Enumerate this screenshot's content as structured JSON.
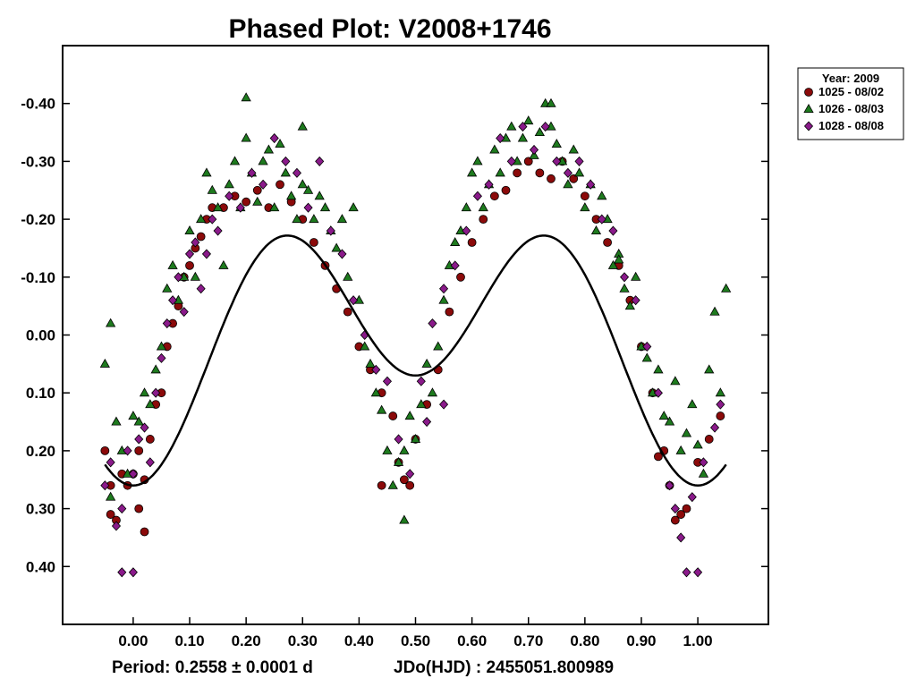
{
  "chart_data": {
    "type": "scatter",
    "title": "Phased Plot: V2008+1746",
    "xlabel": "",
    "ylabel": "",
    "x_ticks": [
      "0.00",
      "0.10",
      "0.20",
      "0.30",
      "0.40",
      "0.50",
      "0.60",
      "0.70",
      "0.80",
      "0.90",
      "1.00"
    ],
    "y_ticks": [
      "-0.40",
      "-0.30",
      "-0.20",
      "-0.10",
      "0.00",
      "0.10",
      "0.20",
      "0.30",
      "0.40"
    ],
    "xlim": [
      -0.125,
      1.125
    ],
    "ylim": [
      0.5,
      -0.5
    ],
    "y_inverted": true,
    "grid": false,
    "legend": {
      "placement": "right-top-outside",
      "title": "Year: 2009",
      "entries": [
        {
          "label": "1025 - 08/02",
          "marker": "circle",
          "color": "#8b0a0a"
        },
        {
          "label": "1026 - 08/03",
          "marker": "triangle",
          "color": "#1e7a1e"
        },
        {
          "label": "1028 - 08/08",
          "marker": "diamond",
          "color": "#8a1a8a"
        }
      ]
    },
    "fit_curve": {
      "color": "#000000",
      "mean": 0.0,
      "amp1": 0.095,
      "amp2": 0.165
    },
    "footer": {
      "period": "Period: 0.2558 ± 0.0001 d",
      "epoch": "JDo(HJD) : 2455051.800989"
    },
    "series": [
      {
        "name": "1025 - 08/02",
        "marker": "circle",
        "color": "#8b0a0a",
        "x": [
          -0.05,
          -0.04,
          -0.03,
          -0.02,
          -0.01,
          0.0,
          0.01,
          0.02,
          0.03,
          0.04,
          0.05,
          0.06,
          0.07,
          0.08,
          0.09,
          0.1,
          0.11,
          0.12,
          0.13,
          0.14,
          0.16,
          0.18,
          0.2,
          0.22,
          0.24,
          0.26,
          0.28,
          0.3,
          0.32,
          0.34,
          0.36,
          0.38,
          0.4,
          0.42,
          0.44,
          0.46,
          0.47,
          0.48,
          0.5,
          0.52,
          0.54,
          0.56,
          0.58,
          0.6,
          0.62,
          0.64,
          0.66,
          0.68,
          0.7,
          0.72,
          0.74,
          0.76,
          0.78,
          0.8,
          0.82,
          0.84,
          0.86,
          0.88,
          0.9,
          0.92,
          0.94,
          0.95,
          0.96,
          0.98,
          1.0,
          1.02,
          1.04,
          -0.04,
          0.02,
          0.44,
          0.49,
          0.93,
          0.97,
          0.01
        ],
        "y": [
          0.2,
          0.31,
          0.32,
          0.24,
          0.26,
          0.24,
          0.2,
          0.25,
          0.18,
          0.12,
          0.1,
          0.02,
          -0.02,
          -0.05,
          -0.1,
          -0.12,
          -0.15,
          -0.17,
          -0.2,
          -0.22,
          -0.22,
          -0.24,
          -0.23,
          -0.25,
          -0.22,
          -0.26,
          -0.23,
          -0.2,
          -0.16,
          -0.12,
          -0.08,
          -0.04,
          0.02,
          0.06,
          0.1,
          0.14,
          0.22,
          0.25,
          0.18,
          0.12,
          0.06,
          -0.04,
          -0.1,
          -0.16,
          -0.2,
          -0.24,
          -0.25,
          -0.28,
          -0.3,
          -0.28,
          -0.27,
          -0.3,
          -0.27,
          -0.24,
          -0.2,
          -0.16,
          -0.12,
          -0.06,
          0.02,
          0.1,
          0.2,
          0.26,
          0.32,
          0.3,
          0.22,
          0.18,
          0.14,
          0.26,
          0.34,
          0.26,
          0.26,
          0.21,
          0.31,
          0.3
        ]
      },
      {
        "name": "1026 - 08/03",
        "marker": "triangle",
        "color": "#1e7a1e",
        "x": [
          -0.05,
          -0.04,
          -0.03,
          -0.02,
          -0.01,
          0.0,
          0.01,
          0.02,
          0.03,
          0.04,
          0.05,
          0.06,
          0.07,
          0.08,
          0.09,
          0.1,
          0.11,
          0.12,
          0.13,
          0.14,
          0.15,
          0.16,
          0.17,
          0.18,
          0.19,
          0.2,
          0.21,
          0.22,
          0.23,
          0.24,
          0.25,
          0.26,
          0.27,
          0.28,
          0.29,
          0.3,
          0.31,
          0.32,
          0.33,
          0.34,
          0.35,
          0.36,
          0.37,
          0.38,
          0.39,
          0.4,
          0.41,
          0.42,
          0.43,
          0.44,
          0.45,
          0.46,
          0.47,
          0.48,
          0.49,
          0.5,
          0.51,
          0.52,
          0.53,
          0.54,
          0.55,
          0.56,
          0.57,
          0.58,
          0.59,
          0.6,
          0.61,
          0.62,
          0.63,
          0.64,
          0.65,
          0.66,
          0.67,
          0.68,
          0.69,
          0.7,
          0.71,
          0.72,
          0.73,
          0.74,
          0.75,
          0.76,
          0.77,
          0.78,
          0.79,
          0.8,
          0.81,
          0.82,
          0.83,
          0.84,
          0.85,
          0.86,
          0.87,
          0.88,
          0.89,
          0.9,
          0.91,
          0.92,
          0.93,
          0.94,
          0.95,
          0.96,
          0.97,
          0.98,
          0.99,
          1.0,
          1.01,
          1.02,
          1.03,
          1.04,
          1.05,
          0.2,
          0.74,
          0.3,
          -0.04,
          0.48,
          0.86
        ],
        "y": [
          0.05,
          -0.02,
          0.15,
          0.2,
          0.24,
          0.14,
          0.15,
          0.1,
          0.12,
          0.06,
          0.02,
          -0.08,
          -0.12,
          -0.06,
          -0.1,
          -0.18,
          -0.1,
          -0.2,
          -0.28,
          -0.25,
          -0.22,
          -0.12,
          -0.26,
          -0.3,
          -0.22,
          -0.34,
          -0.28,
          -0.23,
          -0.3,
          -0.32,
          -0.22,
          -0.33,
          -0.28,
          -0.24,
          -0.2,
          -0.26,
          -0.25,
          -0.2,
          -0.24,
          -0.22,
          -0.18,
          -0.15,
          -0.2,
          -0.1,
          -0.22,
          -0.06,
          0.02,
          0.05,
          0.1,
          0.13,
          0.2,
          0.26,
          0.22,
          0.32,
          0.14,
          0.18,
          0.12,
          0.05,
          0.1,
          0.02,
          -0.06,
          -0.12,
          -0.16,
          -0.18,
          -0.22,
          -0.28,
          -0.3,
          -0.22,
          -0.26,
          -0.32,
          -0.28,
          -0.34,
          -0.36,
          -0.3,
          -0.34,
          -0.37,
          -0.31,
          -0.35,
          -0.4,
          -0.36,
          -0.33,
          -0.3,
          -0.26,
          -0.32,
          -0.28,
          -0.22,
          -0.26,
          -0.18,
          -0.24,
          -0.2,
          -0.12,
          -0.14,
          -0.08,
          -0.05,
          -0.1,
          0.02,
          0.04,
          0.1,
          0.06,
          0.14,
          0.15,
          0.08,
          0.2,
          0.17,
          0.12,
          0.19,
          0.24,
          0.06,
          -0.04,
          0.1,
          -0.08,
          -0.41,
          -0.4,
          -0.36,
          0.28,
          0.2,
          -0.13
        ]
      },
      {
        "name": "1028 - 08/08",
        "marker": "diamond",
        "color": "#8a1a8a",
        "x": [
          -0.05,
          -0.04,
          -0.03,
          -0.02,
          -0.01,
          0.0,
          0.01,
          0.02,
          0.03,
          0.04,
          0.05,
          0.06,
          0.07,
          0.08,
          0.09,
          0.1,
          0.11,
          0.12,
          0.13,
          0.14,
          0.15,
          0.17,
          0.19,
          0.21,
          0.23,
          0.25,
          0.27,
          0.29,
          0.31,
          0.33,
          0.35,
          0.37,
          0.39,
          0.41,
          0.43,
          0.45,
          0.47,
          0.49,
          0.51,
          0.53,
          0.55,
          0.57,
          0.59,
          0.61,
          0.63,
          0.65,
          0.67,
          0.69,
          0.71,
          0.73,
          0.75,
          0.77,
          0.79,
          0.81,
          0.83,
          0.85,
          0.87,
          0.89,
          0.91,
          0.93,
          0.95,
          0.96,
          0.97,
          0.99,
          1.01,
          1.03,
          1.04,
          -0.02,
          0.0,
          0.98,
          1.0,
          0.52,
          0.55
        ],
        "y": [
          0.26,
          0.22,
          0.33,
          0.3,
          0.2,
          0.24,
          0.18,
          0.16,
          0.22,
          0.1,
          0.04,
          -0.02,
          -0.06,
          -0.1,
          -0.04,
          -0.14,
          -0.16,
          -0.08,
          -0.14,
          -0.2,
          -0.18,
          -0.24,
          -0.22,
          -0.28,
          -0.26,
          -0.34,
          -0.3,
          -0.28,
          -0.22,
          -0.3,
          -0.18,
          -0.14,
          -0.06,
          0.0,
          0.06,
          0.08,
          0.18,
          0.24,
          0.08,
          -0.02,
          -0.08,
          -0.12,
          -0.18,
          -0.24,
          -0.26,
          -0.34,
          -0.3,
          -0.36,
          -0.32,
          -0.36,
          -0.3,
          -0.28,
          -0.3,
          -0.26,
          -0.2,
          -0.18,
          -0.1,
          -0.06,
          0.02,
          0.1,
          0.26,
          0.3,
          0.35,
          0.28,
          0.22,
          0.16,
          0.12,
          0.41,
          0.41,
          0.41,
          0.41,
          0.15,
          0.12
        ]
      }
    ]
  }
}
